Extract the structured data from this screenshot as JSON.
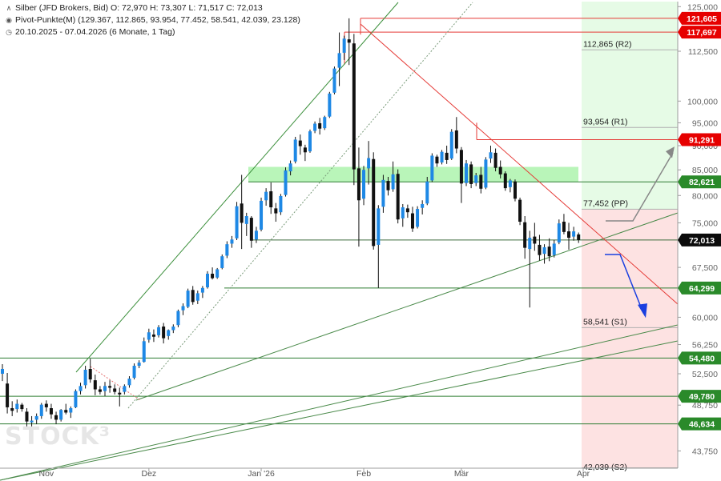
{
  "header": {
    "instrument_line": "Silber (JFD Brokers, Bid)  O: 72,970  H: 73,307  L: 71,517  C: 72,013",
    "pivot_line": "Pivot-Punkte(M) (129.367, 112.865, 93.954, 77.452, 58.541, 42.039, 23.128)",
    "range_line": "20.10.2025 - 07.04.2026  (6 Monate, 1 Tag)"
  },
  "watermark": "STOCK³",
  "chart_data": {
    "type": "candlestick",
    "title": "Silber (JFD Brokers, Bid)",
    "ylim": [
      42.0,
      126.5
    ],
    "y_scale": "log",
    "y_ticks": [
      {
        "v": 125,
        "label": "125,000"
      },
      {
        "v": 112.5,
        "label": "112,500"
      },
      {
        "v": 100,
        "label": "100,000"
      },
      {
        "v": 95,
        "label": "95,000"
      },
      {
        "v": 90,
        "label": "90,000"
      },
      {
        "v": 85,
        "label": "85,000"
      },
      {
        "v": 80,
        "label": "80,000"
      },
      {
        "v": 75,
        "label": "75,000"
      },
      {
        "v": 67.5,
        "label": "67,500"
      },
      {
        "v": 60,
        "label": "60,000"
      },
      {
        "v": 56.25,
        "label": "56,250"
      },
      {
        "v": 52.5,
        "label": "52,500"
      },
      {
        "v": 48.75,
        "label": "48,750"
      },
      {
        "v": 43.75,
        "label": "43,750"
      }
    ],
    "x_labels": [
      {
        "date": "2025-11-01",
        "label": "Nov"
      },
      {
        "date": "2025-12-01",
        "label": "Dez"
      },
      {
        "date": "2026-01-01",
        "label": "Jan '26"
      },
      {
        "date": "2026-02-01",
        "label": "Feb"
      },
      {
        "date": "2026-03-01",
        "label": "Mär"
      },
      {
        "date": "2026-04-01",
        "label": "Apr"
      }
    ],
    "ohlc": [
      [
        "2025-10-20",
        52.5,
        53.7,
        51.6,
        53.1
      ],
      [
        "2025-10-21",
        51.3,
        52.6,
        47.8,
        48.5
      ],
      [
        "2025-10-22",
        48.4,
        49.2,
        47.5,
        48.1
      ],
      [
        "2025-10-23",
        48.3,
        49.4,
        47.9,
        48.9
      ],
      [
        "2025-10-24",
        48.8,
        49.0,
        48.0,
        48.3
      ],
      [
        "2025-10-27",
        48.0,
        48.4,
        46.2,
        46.9
      ],
      [
        "2025-10-28",
        46.8,
        47.5,
        45.9,
        47.0
      ],
      [
        "2025-10-29",
        47.1,
        47.8,
        46.6,
        47.5
      ],
      [
        "2025-10-30",
        47.5,
        49.0,
        47.2,
        48.8
      ],
      [
        "2025-10-31",
        48.9,
        49.3,
        48.0,
        48.5
      ],
      [
        "2025-11-03",
        48.4,
        48.9,
        47.2,
        47.7
      ],
      [
        "2025-11-04",
        47.6,
        48.0,
        46.6,
        47.1
      ],
      [
        "2025-11-05",
        47.1,
        48.3,
        46.9,
        48.2
      ],
      [
        "2025-11-06",
        48.2,
        48.9,
        47.7,
        47.9
      ],
      [
        "2025-11-07",
        47.9,
        48.6,
        47.3,
        48.4
      ],
      [
        "2025-11-10",
        48.5,
        50.6,
        48.4,
        50.4
      ],
      [
        "2025-11-11",
        50.4,
        51.4,
        50.0,
        51.0
      ],
      [
        "2025-11-12",
        51.1,
        53.5,
        50.7,
        53.0
      ],
      [
        "2025-11-13",
        53.1,
        54.4,
        51.4,
        51.8
      ],
      [
        "2025-11-14",
        51.7,
        52.4,
        49.9,
        50.6
      ],
      [
        "2025-11-17",
        50.6,
        51.0,
        50.0,
        50.3
      ],
      [
        "2025-11-18",
        50.4,
        51.5,
        49.8,
        51.0
      ],
      [
        "2025-11-19",
        51.0,
        51.7,
        50.2,
        50.8
      ],
      [
        "2025-11-20",
        50.7,
        51.2,
        50.0,
        50.3
      ],
      [
        "2025-11-21",
        50.2,
        50.8,
        48.6,
        50.0
      ],
      [
        "2025-11-24",
        50.3,
        51.2,
        50.0,
        51.0
      ],
      [
        "2025-11-25",
        51.1,
        52.2,
        50.8,
        51.9
      ],
      [
        "2025-11-26",
        52.0,
        53.8,
        51.8,
        53.5
      ],
      [
        "2025-11-27",
        53.5,
        54.2,
        53.2,
        53.9
      ],
      [
        "2025-11-28",
        54.0,
        57.2,
        53.9,
        56.7
      ],
      [
        "2025-12-01",
        56.9,
        58.4,
        56.5,
        57.9
      ],
      [
        "2025-12-02",
        57.6,
        58.3,
        56.6,
        57.3
      ],
      [
        "2025-12-03",
        57.5,
        58.9,
        57.2,
        58.6
      ],
      [
        "2025-12-04",
        58.7,
        59.2,
        56.4,
        57.1
      ],
      [
        "2025-12-05",
        57.4,
        58.3,
        56.9,
        58.2
      ],
      [
        "2025-12-08",
        58.2,
        59.0,
        57.8,
        58.7
      ],
      [
        "2025-12-09",
        58.9,
        61.1,
        58.6,
        60.9
      ],
      [
        "2025-12-10",
        61.0,
        62.0,
        60.3,
        61.6
      ],
      [
        "2025-12-11",
        61.5,
        64.2,
        61.3,
        63.9
      ],
      [
        "2025-12-12",
        64.0,
        64.6,
        61.8,
        62.2
      ],
      [
        "2025-12-15",
        62.4,
        63.9,
        61.9,
        63.5
      ],
      [
        "2025-12-16",
        63.6,
        64.6,
        62.8,
        64.3
      ],
      [
        "2025-12-17",
        64.4,
        66.9,
        64.2,
        66.5
      ],
      [
        "2025-12-18",
        66.5,
        67.5,
        65.6,
        65.8
      ],
      [
        "2025-12-19",
        65.9,
        67.4,
        65.7,
        67.2
      ],
      [
        "2025-12-22",
        67.4,
        69.6,
        67.2,
        69.3
      ],
      [
        "2025-12-23",
        69.4,
        71.8,
        69.0,
        71.3
      ],
      [
        "2025-12-24",
        71.4,
        72.7,
        70.7,
        72.1
      ],
      [
        "2025-12-26",
        72.3,
        78.8,
        72.0,
        78.0
      ],
      [
        "2025-12-29",
        78.5,
        84.0,
        70.5,
        75.0
      ],
      [
        "2025-12-30",
        74.8,
        76.8,
        72.7,
        76.2
      ],
      [
        "2025-12-31",
        75.9,
        76.2,
        70.7,
        71.9
      ],
      [
        "2026-01-02",
        72.1,
        74.3,
        71.5,
        73.6
      ],
      [
        "2026-01-05",
        73.8,
        79.6,
        73.5,
        79.0
      ],
      [
        "2026-01-06",
        79.1,
        81.4,
        78.1,
        80.7
      ],
      [
        "2026-01-07",
        80.8,
        82.5,
        76.6,
        77.8
      ],
      [
        "2026-01-08",
        77.6,
        78.6,
        75.2,
        76.7
      ],
      [
        "2026-01-09",
        76.9,
        80.3,
        76.4,
        79.9
      ],
      [
        "2026-01-12",
        80.1,
        85.5,
        79.8,
        84.9
      ],
      [
        "2026-01-13",
        84.7,
        86.9,
        83.9,
        86.3
      ],
      [
        "2026-01-14",
        86.7,
        91.9,
        86.3,
        91.3
      ],
      [
        "2026-01-15",
        91.1,
        92.4,
        88.1,
        89.9
      ],
      [
        "2026-01-16",
        89.6,
        90.2,
        86.8,
        88.6
      ],
      [
        "2026-01-19",
        88.8,
        93.5,
        88.5,
        93.1
      ],
      [
        "2026-01-20",
        93.2,
        95.3,
        92.7,
        94.8
      ],
      [
        "2026-01-21",
        94.9,
        96.1,
        92.4,
        93.7
      ],
      [
        "2026-01-22",
        93.8,
        96.6,
        93.4,
        96.3
      ],
      [
        "2026-01-23",
        96.4,
        102.2,
        96.1,
        101.8
      ],
      [
        "2026-01-26",
        102.0,
        108.5,
        101.6,
        108.0
      ],
      [
        "2026-01-27",
        108.2,
        117.6,
        103.6,
        112.0
      ],
      [
        "2026-01-28",
        112.1,
        116.7,
        110.2,
        115.9
      ],
      [
        "2026-01-29",
        115.7,
        121.6,
        108.9,
        114.8
      ],
      [
        "2026-01-30",
        114.6,
        117.2,
        82.0,
        85.1
      ],
      [
        "2026-02-02",
        85.3,
        89.6,
        70.9,
        79.1
      ],
      [
        "2026-02-03",
        79.4,
        85.8,
        78.2,
        85.0
      ],
      [
        "2026-02-04",
        85.3,
        91.0,
        82.1,
        87.4
      ],
      [
        "2026-02-05",
        87.2,
        88.6,
        70.4,
        71.0
      ],
      [
        "2026-02-06",
        71.2,
        78.2,
        64.3,
        77.6
      ],
      [
        "2026-02-09",
        77.9,
        84.0,
        76.8,
        83.0
      ],
      [
        "2026-02-10",
        82.8,
        83.6,
        80.0,
        81.0
      ],
      [
        "2026-02-11",
        81.2,
        86.7,
        80.7,
        84.1
      ],
      [
        "2026-02-12",
        84.2,
        85.1,
        74.9,
        75.6
      ],
      [
        "2026-02-13",
        75.8,
        78.4,
        74.3,
        77.8
      ],
      [
        "2026-02-16",
        77.6,
        78.3,
        75.9,
        76.9
      ],
      [
        "2026-02-17",
        76.7,
        77.9,
        73.4,
        74.0
      ],
      [
        "2026-02-18",
        74.3,
        78.0,
        74.0,
        77.5
      ],
      [
        "2026-02-19",
        77.7,
        79.1,
        76.5,
        78.4
      ],
      [
        "2026-02-20",
        78.5,
        83.6,
        78.2,
        82.7
      ],
      [
        "2026-02-23",
        82.9,
        88.4,
        82.6,
        87.9
      ],
      [
        "2026-02-24",
        87.7,
        88.1,
        85.6,
        86.3
      ],
      [
        "2026-02-25",
        86.5,
        89.1,
        86.1,
        88.7
      ],
      [
        "2026-02-26",
        88.5,
        90.0,
        86.2,
        87.0
      ],
      [
        "2026-02-27",
        87.3,
        93.6,
        87.0,
        93.0
      ],
      [
        "2026-03-02",
        93.3,
        96.3,
        88.4,
        89.4
      ],
      [
        "2026-03-03",
        89.1,
        89.7,
        78.6,
        82.3
      ],
      [
        "2026-03-04",
        82.4,
        87.0,
        81.8,
        86.3
      ],
      [
        "2026-03-05",
        86.1,
        86.7,
        81.4,
        82.2
      ],
      [
        "2026-03-06",
        82.4,
        84.4,
        81.8,
        83.9
      ],
      [
        "2026-03-09",
        84.0,
        85.6,
        80.4,
        81.3
      ],
      [
        "2026-03-10",
        81.5,
        87.6,
        81.2,
        87.1
      ],
      [
        "2026-03-11",
        87.3,
        90.0,
        86.4,
        88.6
      ],
      [
        "2026-03-12",
        88.5,
        89.4,
        84.7,
        85.4
      ],
      [
        "2026-03-13",
        85.6,
        86.9,
        83.3,
        84.1
      ],
      [
        "2026-03-16",
        84.3,
        84.7,
        80.9,
        81.4
      ],
      [
        "2026-03-17",
        81.6,
        83.2,
        80.6,
        82.9
      ],
      [
        "2026-03-18",
        82.7,
        83.1,
        78.9,
        79.4
      ],
      [
        "2026-03-19",
        79.2,
        79.6,
        74.6,
        75.2
      ],
      [
        "2026-03-20",
        75.1,
        76.2,
        68.9,
        70.7
      ],
      [
        "2026-03-23",
        70.5,
        73.6,
        61.4,
        72.4
      ],
      [
        "2026-03-24",
        72.6,
        75.0,
        70.2,
        71.4
      ],
      [
        "2026-03-25",
        71.2,
        72.9,
        68.6,
        69.5
      ],
      [
        "2026-03-26",
        69.7,
        71.3,
        68.1,
        70.8
      ],
      [
        "2026-03-27",
        70.9,
        72.3,
        68.5,
        69.3
      ],
      [
        "2026-03-30",
        69.5,
        72.0,
        69.1,
        71.4
      ],
      [
        "2026-03-31",
        71.6,
        75.6,
        71.3,
        74.9
      ],
      [
        "2026-04-01",
        75.2,
        76.6,
        73.0,
        73.4
      ],
      [
        "2026-04-02",
        73.5,
        75.0,
        70.4,
        72.4
      ],
      [
        "2026-04-06",
        72.6,
        74.3,
        71.9,
        73.5
      ],
      [
        "2026-04-07",
        72.97,
        73.307,
        71.517,
        72.013
      ]
    ],
    "price_tags": [
      {
        "v": 121.605,
        "label": "121,605",
        "kind": "red"
      },
      {
        "v": 117.697,
        "label": "117,697",
        "kind": "red"
      },
      {
        "v": 91.291,
        "label": "91,291",
        "kind": "red"
      },
      {
        "v": 82.621,
        "label": "82,621",
        "kind": "green"
      },
      {
        "v": 72.013,
        "label": "72,013",
        "kind": "dark"
      },
      {
        "v": 64.299,
        "label": "64,299",
        "kind": "green"
      },
      {
        "v": 54.48,
        "label": "54,480",
        "kind": "green"
      },
      {
        "v": 49.78,
        "label": "49,780",
        "kind": "green"
      },
      {
        "v": 46.634,
        "label": "46,634",
        "kind": "green"
      }
    ],
    "pivots": [
      {
        "v": 112.865,
        "label": "112,865 (R2)"
      },
      {
        "v": 93.954,
        "label": "93,954 (R1)"
      },
      {
        "v": 77.452,
        "label": "77,452 (PP)"
      },
      {
        "v": 58.541,
        "label": "58,541 (S1)"
      },
      {
        "v": 42.039,
        "label": "42,039 (S2)"
      }
    ],
    "support_zone": [
      82.621,
      85.6
    ],
    "colors": {
      "up": "#1e88e5",
      "down": "#111111",
      "red_line": "#e53935",
      "green_line": "#2e7d32",
      "tag_red": "#e60000",
      "tag_green": "#2a8a2a",
      "tag_dark": "#0b0b0b",
      "zone_green": "#b9f5b9",
      "future_green": "#e6fbe6",
      "future_red": "#fde2e2"
    }
  }
}
